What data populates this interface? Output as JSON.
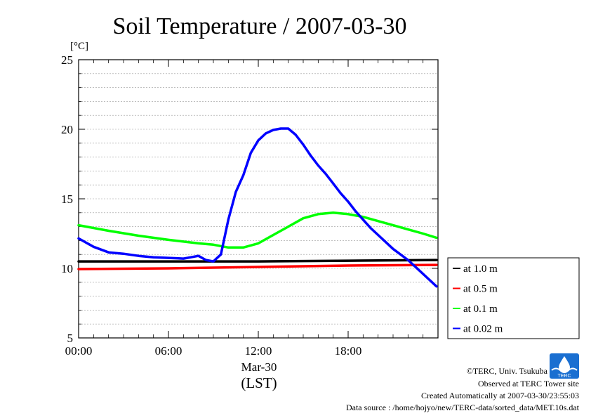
{
  "chart_data": {
    "type": "line",
    "title": "Soil Temperature / 2007-03-30",
    "ylabel_unit": "[°C]",
    "xlabel_date": "Mar-30",
    "xlabel": "(LST)",
    "ylim": [
      5,
      25
    ],
    "yticks": [
      "5",
      "10",
      "15",
      "20",
      "25"
    ],
    "xlim": [
      0,
      24
    ],
    "xticks": [
      {
        "label": "00:00",
        "hour": 0
      },
      {
        "label": "06:00",
        "hour": 6
      },
      {
        "label": "12:00",
        "hour": 12
      },
      {
        "label": "18:00",
        "hour": 18
      }
    ],
    "grid": true,
    "legend_position": "right",
    "series": [
      {
        "name": "at 1.0 m",
        "color": "#000000",
        "x": [
          0,
          6,
          12,
          18,
          23.9
        ],
        "y": [
          10.5,
          10.5,
          10.5,
          10.55,
          10.6
        ]
      },
      {
        "name": "at 0.5 m",
        "color": "#ff0000",
        "x": [
          0,
          6,
          12,
          18,
          23.9
        ],
        "y": [
          9.95,
          10.0,
          10.1,
          10.2,
          10.25
        ]
      },
      {
        "name": "at 0.1 m",
        "color": "#00ff00",
        "x": [
          0,
          2,
          4,
          6,
          8,
          9,
          10,
          11,
          12,
          13,
          14,
          15,
          16,
          17,
          18,
          19,
          20,
          21,
          22,
          23,
          23.9
        ],
        "y": [
          13.1,
          12.7,
          12.35,
          12.05,
          11.8,
          11.7,
          11.5,
          11.5,
          11.8,
          12.4,
          13.0,
          13.6,
          13.9,
          14.0,
          13.9,
          13.7,
          13.4,
          13.1,
          12.8,
          12.5,
          12.2
        ]
      },
      {
        "name": "at 0.02 m",
        "color": "#0000ff",
        "x": [
          0,
          1,
          2,
          3,
          4,
          5,
          6,
          7,
          7.5,
          8,
          8.5,
          9,
          9.5,
          10,
          10.5,
          11,
          11.5,
          12,
          12.5,
          13,
          13.5,
          14,
          14.5,
          15,
          15.5,
          16,
          16.5,
          17,
          17.5,
          18,
          18.5,
          19,
          19.5,
          20,
          21,
          22,
          23,
          23.9
        ],
        "y": [
          12.15,
          11.55,
          11.15,
          11.05,
          10.9,
          10.8,
          10.75,
          10.7,
          10.8,
          10.9,
          10.6,
          10.5,
          11.0,
          13.5,
          15.5,
          16.7,
          18.3,
          19.2,
          19.7,
          19.95,
          20.05,
          20.05,
          19.6,
          18.9,
          18.1,
          17.4,
          16.8,
          16.1,
          15.4,
          14.8,
          14.1,
          13.5,
          12.9,
          12.4,
          11.4,
          10.6,
          9.6,
          8.7
        ]
      }
    ]
  },
  "footer": {
    "copyright": "©TERC, Univ. Tsukuba",
    "observed": "Observed at TERC Tower site",
    "created": "Created Automatically at 2007-03-30/23:55:03",
    "source": "Data source : /home/hojyo/new/TERC-data/sorted_data/MET.10s.dat"
  },
  "logo": {
    "text": "TERC",
    "color": "#1a6fd1"
  }
}
